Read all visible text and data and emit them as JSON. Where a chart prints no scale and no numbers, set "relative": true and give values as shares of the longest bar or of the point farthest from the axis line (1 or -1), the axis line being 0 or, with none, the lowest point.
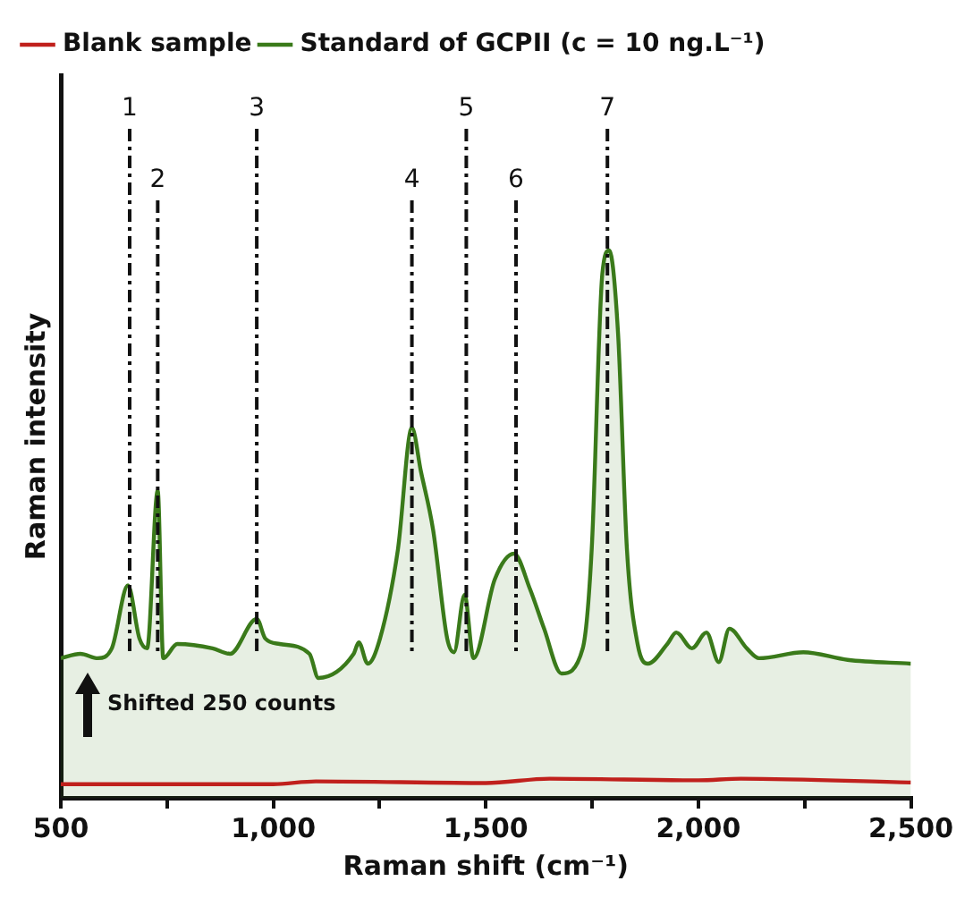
{
  "chart_data": {
    "type": "line",
    "relative": true,
    "xlabel": "Raman shift (cm⁻¹)",
    "ylabel": "Raman intensity",
    "xlim": [
      500,
      2500
    ],
    "xticks": [
      500,
      {
        "value": 750,
        "label": null
      },
      {
        "value": 1000,
        "label": "1,000"
      },
      {
        "value": 1250,
        "label": null
      },
      {
        "value": 1500,
        "label": "1,500"
      },
      {
        "value": 1750,
        "label": null
      },
      {
        "value": 2000,
        "label": "2,000"
      },
      {
        "value": 2250,
        "label": null
      },
      {
        "value": 2500,
        "label": "2,500"
      }
    ],
    "grid": false,
    "legend": "top left",
    "marker": "none",
    "line_style": "solid",
    "series": [
      {
        "name": "Blank sample",
        "color": "#c0201c",
        "x": [
          500,
          1000,
          1100,
          1500,
          1650,
          2000,
          2100,
          2500
        ],
        "values": [
          0.025,
          0.025,
          0.03,
          0.027,
          0.035,
          0.032,
          0.035,
          0.028
        ]
      },
      {
        "name": "Standard of GCPII (c = 10 ng.L⁻¹)",
        "type": "area",
        "color": "#3a7a1a",
        "x": [
          500,
          546,
          587,
          620,
          658,
          685,
          703,
          728,
          741,
          774,
          857,
          898,
          961,
          981,
          1015,
          1085,
          1106,
          1189,
          1201,
          1222,
          1251,
          1293,
          1326,
          1347,
          1376,
          1409,
          1425,
          1450,
          1471,
          1521,
          1566,
          1604,
          1637,
          1678,
          1728,
          1749,
          1774,
          1790,
          1811,
          1832,
          1857,
          1881,
          1927,
          1948,
          1985,
          2019,
          2048,
          2073,
          2114,
          2143,
          2247,
          2351,
          2500
        ],
        "values": [
          0.255,
          0.263,
          0.255,
          0.273,
          0.388,
          0.291,
          0.273,
          0.561,
          0.255,
          0.281,
          0.273,
          0.263,
          0.327,
          0.291,
          0.281,
          0.263,
          0.219,
          0.263,
          0.284,
          0.245,
          0.291,
          0.453,
          0.676,
          0.597,
          0.489,
          0.291,
          0.266,
          0.371,
          0.255,
          0.399,
          0.446,
          0.381,
          0.309,
          0.227,
          0.273,
          0.453,
          0.957,
          1,
          0.849,
          0.453,
          0.281,
          0.245,
          0.281,
          0.302,
          0.273,
          0.302,
          0.248,
          0.309,
          0.273,
          0.255,
          0.266,
          0.252,
          0.245
        ]
      }
    ],
    "ref_lines": [
      {
        "axis": "x",
        "value": 662,
        "line_style": "dashdot"
      },
      {
        "axis": "x",
        "value": 728,
        "line_style": "dashdot"
      },
      {
        "axis": "x",
        "value": 961,
        "line_style": "dashdot"
      },
      {
        "axis": "x",
        "value": 1326,
        "line_style": "dashdot"
      },
      {
        "axis": "x",
        "value": 1454,
        "line_style": "dashdot"
      },
      {
        "axis": "x",
        "value": 1571,
        "line_style": "dashdot"
      },
      {
        "axis": "x",
        "value": 1786,
        "line_style": "dashdot"
      }
    ],
    "annotations": [
      "1",
      "2",
      "3",
      "4",
      "5",
      "6",
      "7",
      "Shifted 250 counts"
    ]
  }
}
